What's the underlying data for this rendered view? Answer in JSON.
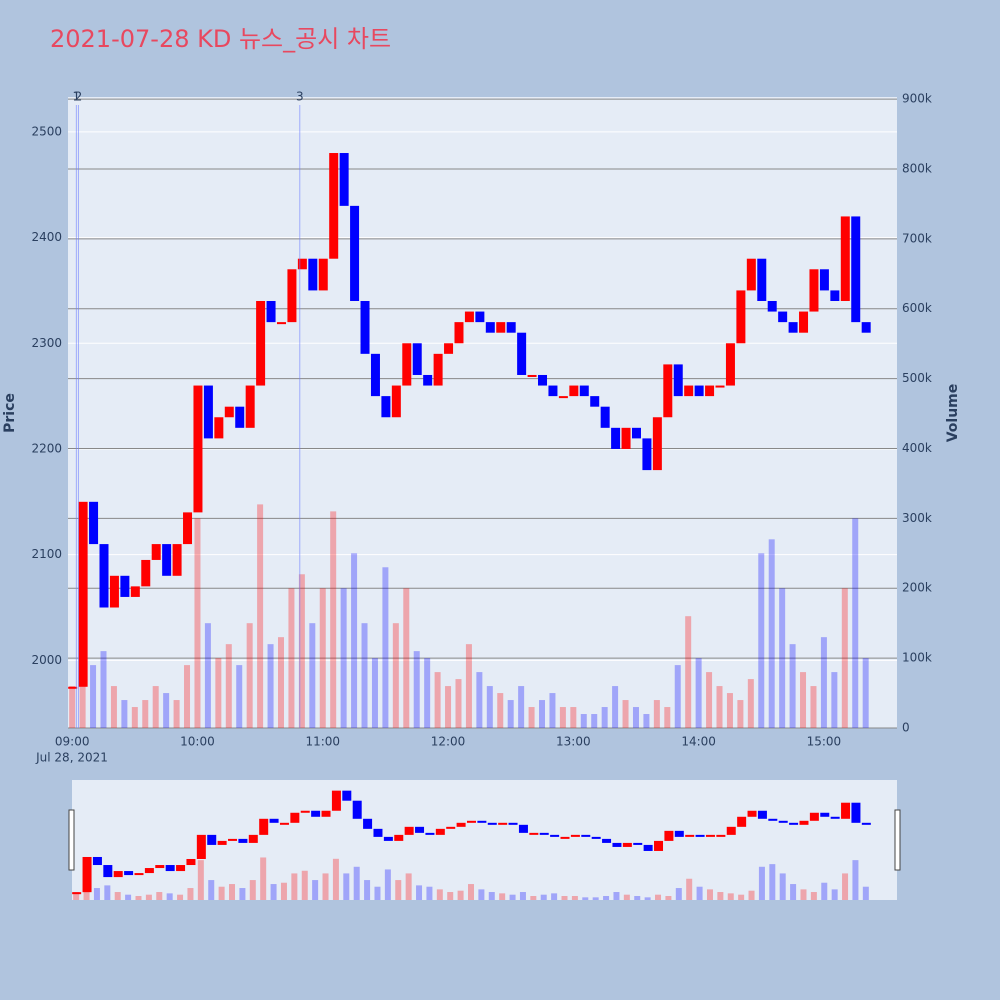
{
  "chart_data": {
    "type": "candlestick",
    "title": "2021-07-28 KD 뉴스_공시 차트",
    "ylabel": "Price",
    "y2label": "Volume",
    "x_date_label": "Jul 28, 2021",
    "up_color": "#ff0000",
    "down_color": "#0000ff",
    "x": [
      "09:00",
      "09:05",
      "09:10",
      "09:15",
      "09:20",
      "09:25",
      "09:30",
      "09:35",
      "09:40",
      "09:45",
      "09:50",
      "09:55",
      "10:00",
      "10:05",
      "10:10",
      "10:15",
      "10:20",
      "10:25",
      "10:30",
      "10:35",
      "10:40",
      "10:45",
      "10:50",
      "10:55",
      "11:00",
      "11:05",
      "11:10",
      "11:15",
      "11:20",
      "11:25",
      "11:30",
      "11:35",
      "11:40",
      "11:45",
      "11:50",
      "11:55",
      "12:00",
      "12:05",
      "12:10",
      "12:15",
      "12:20",
      "12:25",
      "12:30",
      "12:35",
      "12:40",
      "12:45",
      "12:50",
      "12:55",
      "13:00",
      "13:05",
      "13:10",
      "13:15",
      "13:20",
      "13:25",
      "13:30",
      "13:35",
      "13:40",
      "13:45",
      "13:50",
      "13:55",
      "14:00",
      "14:05",
      "14:10",
      "14:15",
      "14:20",
      "14:25",
      "14:30",
      "14:35",
      "14:40",
      "14:45",
      "14:50",
      "14:55",
      "15:00",
      "15:05",
      "15:10",
      "15:15",
      "15:20"
    ],
    "price": [
      1975,
      2150,
      2110,
      2050,
      2080,
      2060,
      2070,
      2095,
      2110,
      2080,
      2110,
      2140,
      2260,
      2210,
      2230,
      2240,
      2220,
      2260,
      2340,
      2320,
      2320,
      2370,
      2380,
      2350,
      2380,
      2480,
      2430,
      2340,
      2290,
      2250,
      2230,
      2260,
      2300,
      2270,
      2260,
      2290,
      2300,
      2320,
      2330,
      2320,
      2310,
      2320,
      2310,
      2270,
      2270,
      2260,
      2250,
      2250,
      2260,
      2250,
      2240,
      2220,
      2200,
      2220,
      2210,
      2180,
      2230,
      2280,
      2250,
      2260,
      2250,
      2260,
      2260,
      2300,
      2350,
      2380,
      2340,
      2330,
      2320,
      2310,
      2330,
      2370,
      2350,
      2340,
      2420,
      2320,
      2310
    ],
    "volume": [
      60000,
      120000,
      90000,
      110000,
      60000,
      40000,
      30000,
      40000,
      60000,
      50000,
      40000,
      90000,
      300000,
      150000,
      100000,
      120000,
      90000,
      150000,
      320000,
      120000,
      130000,
      200000,
      220000,
      150000,
      200000,
      310000,
      200000,
      250000,
      150000,
      100000,
      230000,
      150000,
      200000,
      110000,
      100000,
      80000,
      60000,
      70000,
      120000,
      80000,
      60000,
      50000,
      40000,
      60000,
      30000,
      40000,
      50000,
      30000,
      30000,
      20000,
      20000,
      30000,
      60000,
      40000,
      30000,
      20000,
      40000,
      30000,
      90000,
      160000,
      100000,
      80000,
      60000,
      50000,
      40000,
      70000,
      250000,
      270000,
      200000,
      120000,
      80000,
      60000,
      130000,
      80000,
      200000,
      300000,
      100000
    ],
    "annotations": [
      {
        "x": "09:02",
        "text": "1"
      },
      {
        "x": "09:03",
        "text": "2"
      },
      {
        "x": "10:49",
        "text": "3"
      }
    ],
    "xlim": [
      "08:58",
      "15:35"
    ],
    "xticks": [
      "09:00",
      "10:00",
      "11:00",
      "12:00",
      "13:00",
      "14:00",
      "15:00"
    ],
    "ylim": [
      1936,
      2533
    ],
    "yticks": [
      2000,
      2100,
      2200,
      2300,
      2400,
      2500
    ],
    "y2lim": [
      0,
      903000
    ],
    "y2ticks": [
      0,
      {
        "value": 100000,
        "label": "100k"
      },
      {
        "value": 200000,
        "label": "200k"
      },
      {
        "value": 300000,
        "label": "300k"
      },
      {
        "value": 400000,
        "label": "400k"
      },
      {
        "value": 500000,
        "label": "500k"
      },
      {
        "value": 600000,
        "label": "600k"
      },
      {
        "value": 700000,
        "label": "700k"
      },
      {
        "value": 800000,
        "label": "800k"
      },
      {
        "value": 900000,
        "label": "900k"
      }
    ],
    "grid": true
  }
}
